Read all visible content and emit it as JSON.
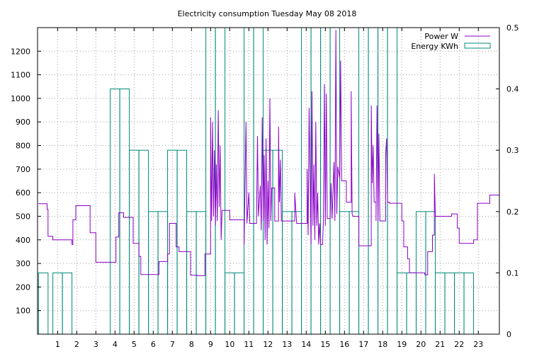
{
  "chart_data": {
    "type": "line",
    "title": "Electricity consumption Tuesday May 08 2018",
    "xlabel": "",
    "ylabel": "",
    "y2label": "",
    "xlim": [
      -0.05,
      24.1
    ],
    "ylim": [
      0,
      1300
    ],
    "y2lim": [
      0,
      0.5
    ],
    "x_ticks": [
      1,
      2,
      3,
      4,
      5,
      6,
      7,
      8,
      9,
      10,
      11,
      12,
      13,
      14,
      15,
      16,
      17,
      18,
      19,
      20,
      21,
      22,
      23
    ],
    "y_ticks": [
      100,
      200,
      300,
      400,
      500,
      600,
      700,
      800,
      900,
      1000,
      1100,
      1200
    ],
    "y2_ticks": [
      0,
      0.1,
      0.2,
      0.3,
      0.4,
      0.5
    ],
    "y2_tick_labels": [
      "0",
      "0.1",
      "0.2",
      "0.3",
      "0.4",
      "0.5"
    ],
    "grid": true,
    "legend_position": "top-right",
    "colors": {
      "power": "#8b00c8",
      "energy": "#008b7a",
      "grid": "#a0a0a0"
    },
    "series": [
      {
        "name": "Power W",
        "axis": "y",
        "style": "step-line",
        "points": [
          [
            0,
            553
          ],
          [
            0.45,
            553
          ],
          [
            0.45,
            530
          ],
          [
            0.5,
            530
          ],
          [
            0.5,
            415
          ],
          [
            0.75,
            415
          ],
          [
            0.75,
            400
          ],
          [
            1.75,
            400
          ],
          [
            1.75,
            380
          ],
          [
            1.8,
            380
          ],
          [
            1.8,
            485
          ],
          [
            1.95,
            485
          ],
          [
            1.95,
            545
          ],
          [
            2.7,
            545
          ],
          [
            2.7,
            430
          ],
          [
            3.0,
            430
          ],
          [
            3.0,
            305
          ],
          [
            4.05,
            305
          ],
          [
            4.05,
            412
          ],
          [
            4.2,
            412
          ],
          [
            4.2,
            515
          ],
          [
            4.45,
            515
          ],
          [
            4.45,
            495
          ],
          [
            4.95,
            495
          ],
          [
            4.95,
            385
          ],
          [
            5.25,
            385
          ],
          [
            5.25,
            330
          ],
          [
            5.35,
            330
          ],
          [
            5.35,
            253
          ],
          [
            6.3,
            253
          ],
          [
            6.3,
            308
          ],
          [
            6.75,
            308
          ],
          [
            6.75,
            340
          ],
          [
            6.85,
            340
          ],
          [
            6.85,
            470
          ],
          [
            7.2,
            470
          ],
          [
            7.2,
            370
          ],
          [
            7.35,
            370
          ],
          [
            7.35,
            350
          ],
          [
            7.95,
            350
          ],
          [
            7.95,
            250
          ],
          [
            8.3,
            250
          ],
          [
            8.3,
            248
          ],
          [
            8.7,
            248
          ],
          [
            8.7,
            340
          ],
          [
            9.0,
            340
          ],
          [
            9.0,
            920
          ],
          [
            9.05,
            480
          ],
          [
            9.1,
            900
          ],
          [
            9.15,
            500
          ],
          [
            9.2,
            780
          ],
          [
            9.25,
            460
          ],
          [
            9.3,
            720
          ],
          [
            9.35,
            480
          ],
          [
            9.4,
            950
          ],
          [
            9.45,
            540
          ],
          [
            9.5,
            800
          ],
          [
            9.55,
            400
          ],
          [
            9.6,
            525
          ],
          [
            10.0,
            525
          ],
          [
            10.0,
            485
          ],
          [
            10.75,
            485
          ],
          [
            10.75,
            380
          ],
          [
            10.85,
            900
          ],
          [
            10.9,
            470
          ],
          [
            11.0,
            600
          ],
          [
            11.05,
            470
          ],
          [
            11.4,
            470
          ],
          [
            11.45,
            840
          ],
          [
            11.5,
            500
          ],
          [
            11.6,
            630
          ],
          [
            11.65,
            440
          ],
          [
            11.7,
            920
          ],
          [
            11.75,
            480
          ],
          [
            11.8,
            760
          ],
          [
            11.85,
            400
          ],
          [
            11.9,
            830
          ],
          [
            11.95,
            380
          ],
          [
            12.0,
            650
          ],
          [
            12.05,
            450
          ],
          [
            12.1,
            1000
          ],
          [
            12.15,
            480
          ],
          [
            12.2,
            620
          ],
          [
            12.35,
            620
          ],
          [
            12.35,
            480
          ],
          [
            12.55,
            480
          ],
          [
            12.55,
            880
          ],
          [
            12.6,
            560
          ],
          [
            12.65,
            740
          ],
          [
            12.7,
            480
          ],
          [
            13.4,
            480
          ],
          [
            13.4,
            600
          ],
          [
            13.5,
            470
          ],
          [
            14.05,
            470
          ],
          [
            14.05,
            700
          ],
          [
            14.1,
            420
          ],
          [
            14.15,
            960
          ],
          [
            14.2,
            700
          ],
          [
            14.25,
            380
          ],
          [
            14.3,
            1030
          ],
          [
            14.35,
            460
          ],
          [
            14.4,
            720
          ],
          [
            14.45,
            400
          ],
          [
            14.5,
            900
          ],
          [
            14.55,
            460
          ],
          [
            14.6,
            600
          ],
          [
            14.65,
            380
          ],
          [
            14.7,
            470
          ],
          [
            14.75,
            380
          ],
          [
            14.85,
            380
          ],
          [
            14.9,
            480
          ],
          [
            14.95,
            1060
          ],
          [
            15.0,
            460
          ],
          [
            15.05,
            1020
          ],
          [
            15.1,
            490
          ],
          [
            15.25,
            490
          ],
          [
            15.3,
            640
          ],
          [
            15.35,
            490
          ],
          [
            15.45,
            730
          ],
          [
            15.5,
            480
          ],
          [
            15.55,
            1290
          ],
          [
            15.6,
            510
          ],
          [
            15.65,
            710
          ],
          [
            15.75,
            660
          ],
          [
            15.8,
            1160
          ],
          [
            15.85,
            650
          ],
          [
            16.1,
            650
          ],
          [
            16.1,
            560
          ],
          [
            16.35,
            560
          ],
          [
            16.35,
            1030
          ],
          [
            16.4,
            510
          ],
          [
            16.45,
            500
          ],
          [
            16.75,
            500
          ],
          [
            16.75,
            375
          ],
          [
            17.4,
            375
          ],
          [
            17.4,
            970
          ],
          [
            17.45,
            640
          ],
          [
            17.5,
            800
          ],
          [
            17.55,
            560
          ],
          [
            17.65,
            560
          ],
          [
            17.65,
            480
          ],
          [
            17.7,
            970
          ],
          [
            17.75,
            480
          ],
          [
            17.8,
            850
          ],
          [
            17.85,
            480
          ],
          [
            18.15,
            480
          ],
          [
            18.15,
            760
          ],
          [
            18.2,
            830
          ],
          [
            18.25,
            560
          ],
          [
            18.35,
            560
          ],
          [
            18.35,
            555
          ],
          [
            19.0,
            555
          ],
          [
            19.0,
            480
          ],
          [
            19.1,
            480
          ],
          [
            19.1,
            370
          ],
          [
            19.3,
            370
          ],
          [
            19.3,
            320
          ],
          [
            19.4,
            320
          ],
          [
            19.4,
            260
          ],
          [
            20.2,
            260
          ],
          [
            20.2,
            252
          ],
          [
            20.35,
            252
          ],
          [
            20.35,
            350
          ],
          [
            20.6,
            350
          ],
          [
            20.6,
            420
          ],
          [
            20.7,
            420
          ],
          [
            20.7,
            680
          ],
          [
            20.75,
            500
          ],
          [
            21.6,
            500
          ],
          [
            21.6,
            510
          ],
          [
            21.9,
            510
          ],
          [
            21.9,
            450
          ],
          [
            22.0,
            450
          ],
          [
            22.0,
            385
          ],
          [
            22.75,
            385
          ],
          [
            22.75,
            400
          ],
          [
            22.95,
            400
          ],
          [
            22.95,
            555
          ],
          [
            23.6,
            555
          ],
          [
            23.6,
            590
          ],
          [
            24.1,
            590
          ]
        ]
      },
      {
        "name": "Energy KWh",
        "axis": "y2",
        "style": "impulse-bars",
        "bars": [
          [
            0,
            0.1
          ],
          [
            0.75,
            0.1
          ],
          [
            1.25,
            0.1
          ],
          [
            3.75,
            0.4
          ],
          [
            4.25,
            0.4
          ],
          [
            4.75,
            0.3
          ],
          [
            5.25,
            0.3
          ],
          [
            5.75,
            0.2
          ],
          [
            6.25,
            0.2
          ],
          [
            6.75,
            0.3
          ],
          [
            7.25,
            0.3
          ],
          [
            7.75,
            0.2
          ],
          [
            8.25,
            0.2
          ],
          [
            8.75,
            0.5
          ],
          [
            9.25,
            0.5
          ],
          [
            9.75,
            0.1
          ],
          [
            10.25,
            0.1
          ],
          [
            10.75,
            0.5
          ],
          [
            11.25,
            0.5
          ],
          [
            11.75,
            0.3
          ],
          [
            12.25,
            0.3
          ],
          [
            12.75,
            0.2
          ],
          [
            13.25,
            0.2
          ],
          [
            13.75,
            0.5
          ],
          [
            14.25,
            0.5
          ],
          [
            14.75,
            0.5
          ],
          [
            15.25,
            0.5
          ],
          [
            15.75,
            0.2
          ],
          [
            16.25,
            0.2
          ],
          [
            16.75,
            0.5
          ],
          [
            17.25,
            0.5
          ],
          [
            17.75,
            0.5
          ],
          [
            18.25,
            0.5
          ],
          [
            18.75,
            0.1
          ],
          [
            19.25,
            0.1
          ],
          [
            19.75,
            0.2
          ],
          [
            20.25,
            0.2
          ],
          [
            20.75,
            0.1
          ],
          [
            21.25,
            0.1
          ],
          [
            21.75,
            0.1
          ],
          [
            22.25,
            0.1
          ]
        ]
      }
    ]
  }
}
